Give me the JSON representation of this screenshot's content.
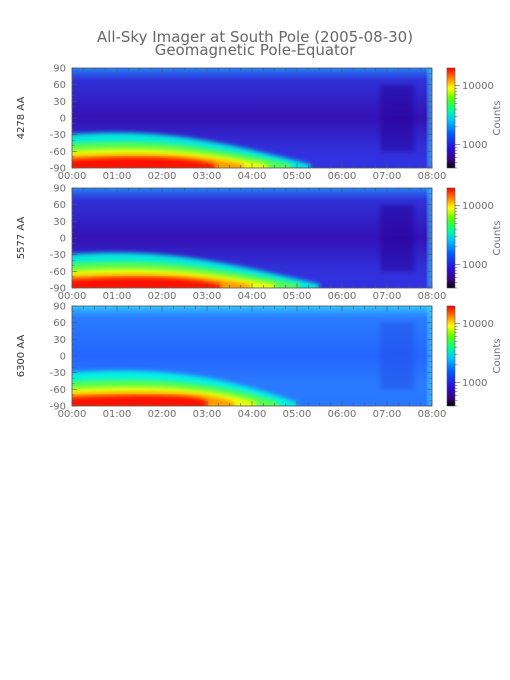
{
  "title": "All-Sky Imager at South Pole (2005-08-30)",
  "subtitle": "Geomagnetic Pole-Equator",
  "chart_data": [
    {
      "type": "heatmap",
      "ylabel": "4278 AA",
      "x_ticks": [
        "00:00",
        "01:00",
        "02:00",
        "03:00",
        "04:00",
        "05:00",
        "06:00",
        "07:00",
        "08:00"
      ],
      "y_ticks": [
        90,
        60,
        30,
        0,
        -30,
        -60,
        -90
      ],
      "xlim": [
        "00:00",
        "08:00"
      ],
      "ylim": [
        -90,
        90
      ],
      "colorbar": {
        "label": "Counts",
        "scale": "log",
        "ticks": [
          1000,
          10000
        ],
        "tick_labels": [
          "1000",
          "10000"
        ],
        "range": [
          400,
          20000
        ]
      },
      "colors": {
        "low": "#1a0088",
        "bg": "#3a14c8",
        "high": "#ff0000"
      },
      "band": {
        "peak_lat": -80,
        "peak_hours": [
          1.5,
          2.5
        ],
        "fade_hour": 5.3
      }
    },
    {
      "type": "heatmap",
      "ylabel": "5577 AA",
      "x_ticks": [
        "00:00",
        "01:00",
        "02:00",
        "03:00",
        "04:00",
        "05:00",
        "06:00",
        "07:00",
        "08:00"
      ],
      "y_ticks": [
        90,
        60,
        30,
        0,
        -30,
        -60,
        -90
      ],
      "xlim": [
        "00:00",
        "08:00"
      ],
      "ylim": [
        -90,
        90
      ],
      "colorbar": {
        "label": "Counts",
        "scale": "log",
        "ticks": [
          1000,
          10000
        ],
        "tick_labels": [
          "1000",
          "10000"
        ],
        "range": [
          400,
          20000
        ]
      },
      "colors": {
        "low": "#1a0088",
        "bg": "#3a14c8",
        "high": "#ff0000"
      },
      "band": {
        "peak_lat": -80,
        "peak_hours": [
          1.5,
          2.5
        ],
        "fade_hour": 5.5
      }
    },
    {
      "type": "heatmap",
      "ylabel": "6300 AA",
      "x_ticks": [
        "00:00",
        "01:00",
        "02:00",
        "03:00",
        "04:00",
        "05:00",
        "06:00",
        "07:00",
        "08:00"
      ],
      "y_ticks": [
        90,
        60,
        30,
        0,
        -30,
        -60,
        -90
      ],
      "xlim": [
        "00:00",
        "08:00"
      ],
      "ylim": [
        -90,
        90
      ],
      "colorbar": {
        "label": "Counts",
        "scale": "log",
        "ticks": [
          1000,
          10000
        ],
        "tick_labels": [
          "1000",
          "10000"
        ],
        "range": [
          400,
          20000
        ]
      },
      "colors": {
        "low": "#1a0088",
        "bg": "#2a70ff",
        "high": "#ff0000"
      },
      "band": {
        "peak_lat": -80,
        "peak_hours": [
          1.5,
          3.0
        ],
        "fade_hour": 5.0
      }
    }
  ]
}
